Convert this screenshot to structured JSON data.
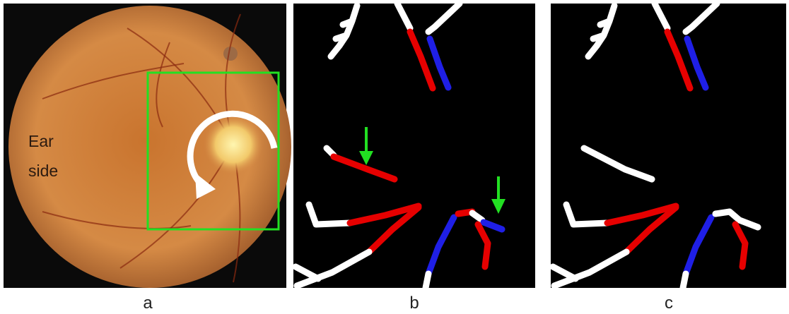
{
  "panels": [
    {
      "label": "a",
      "annotation": [
        "Ear",
        "side"
      ]
    },
    {
      "label": "b"
    },
    {
      "label": "c"
    }
  ]
}
